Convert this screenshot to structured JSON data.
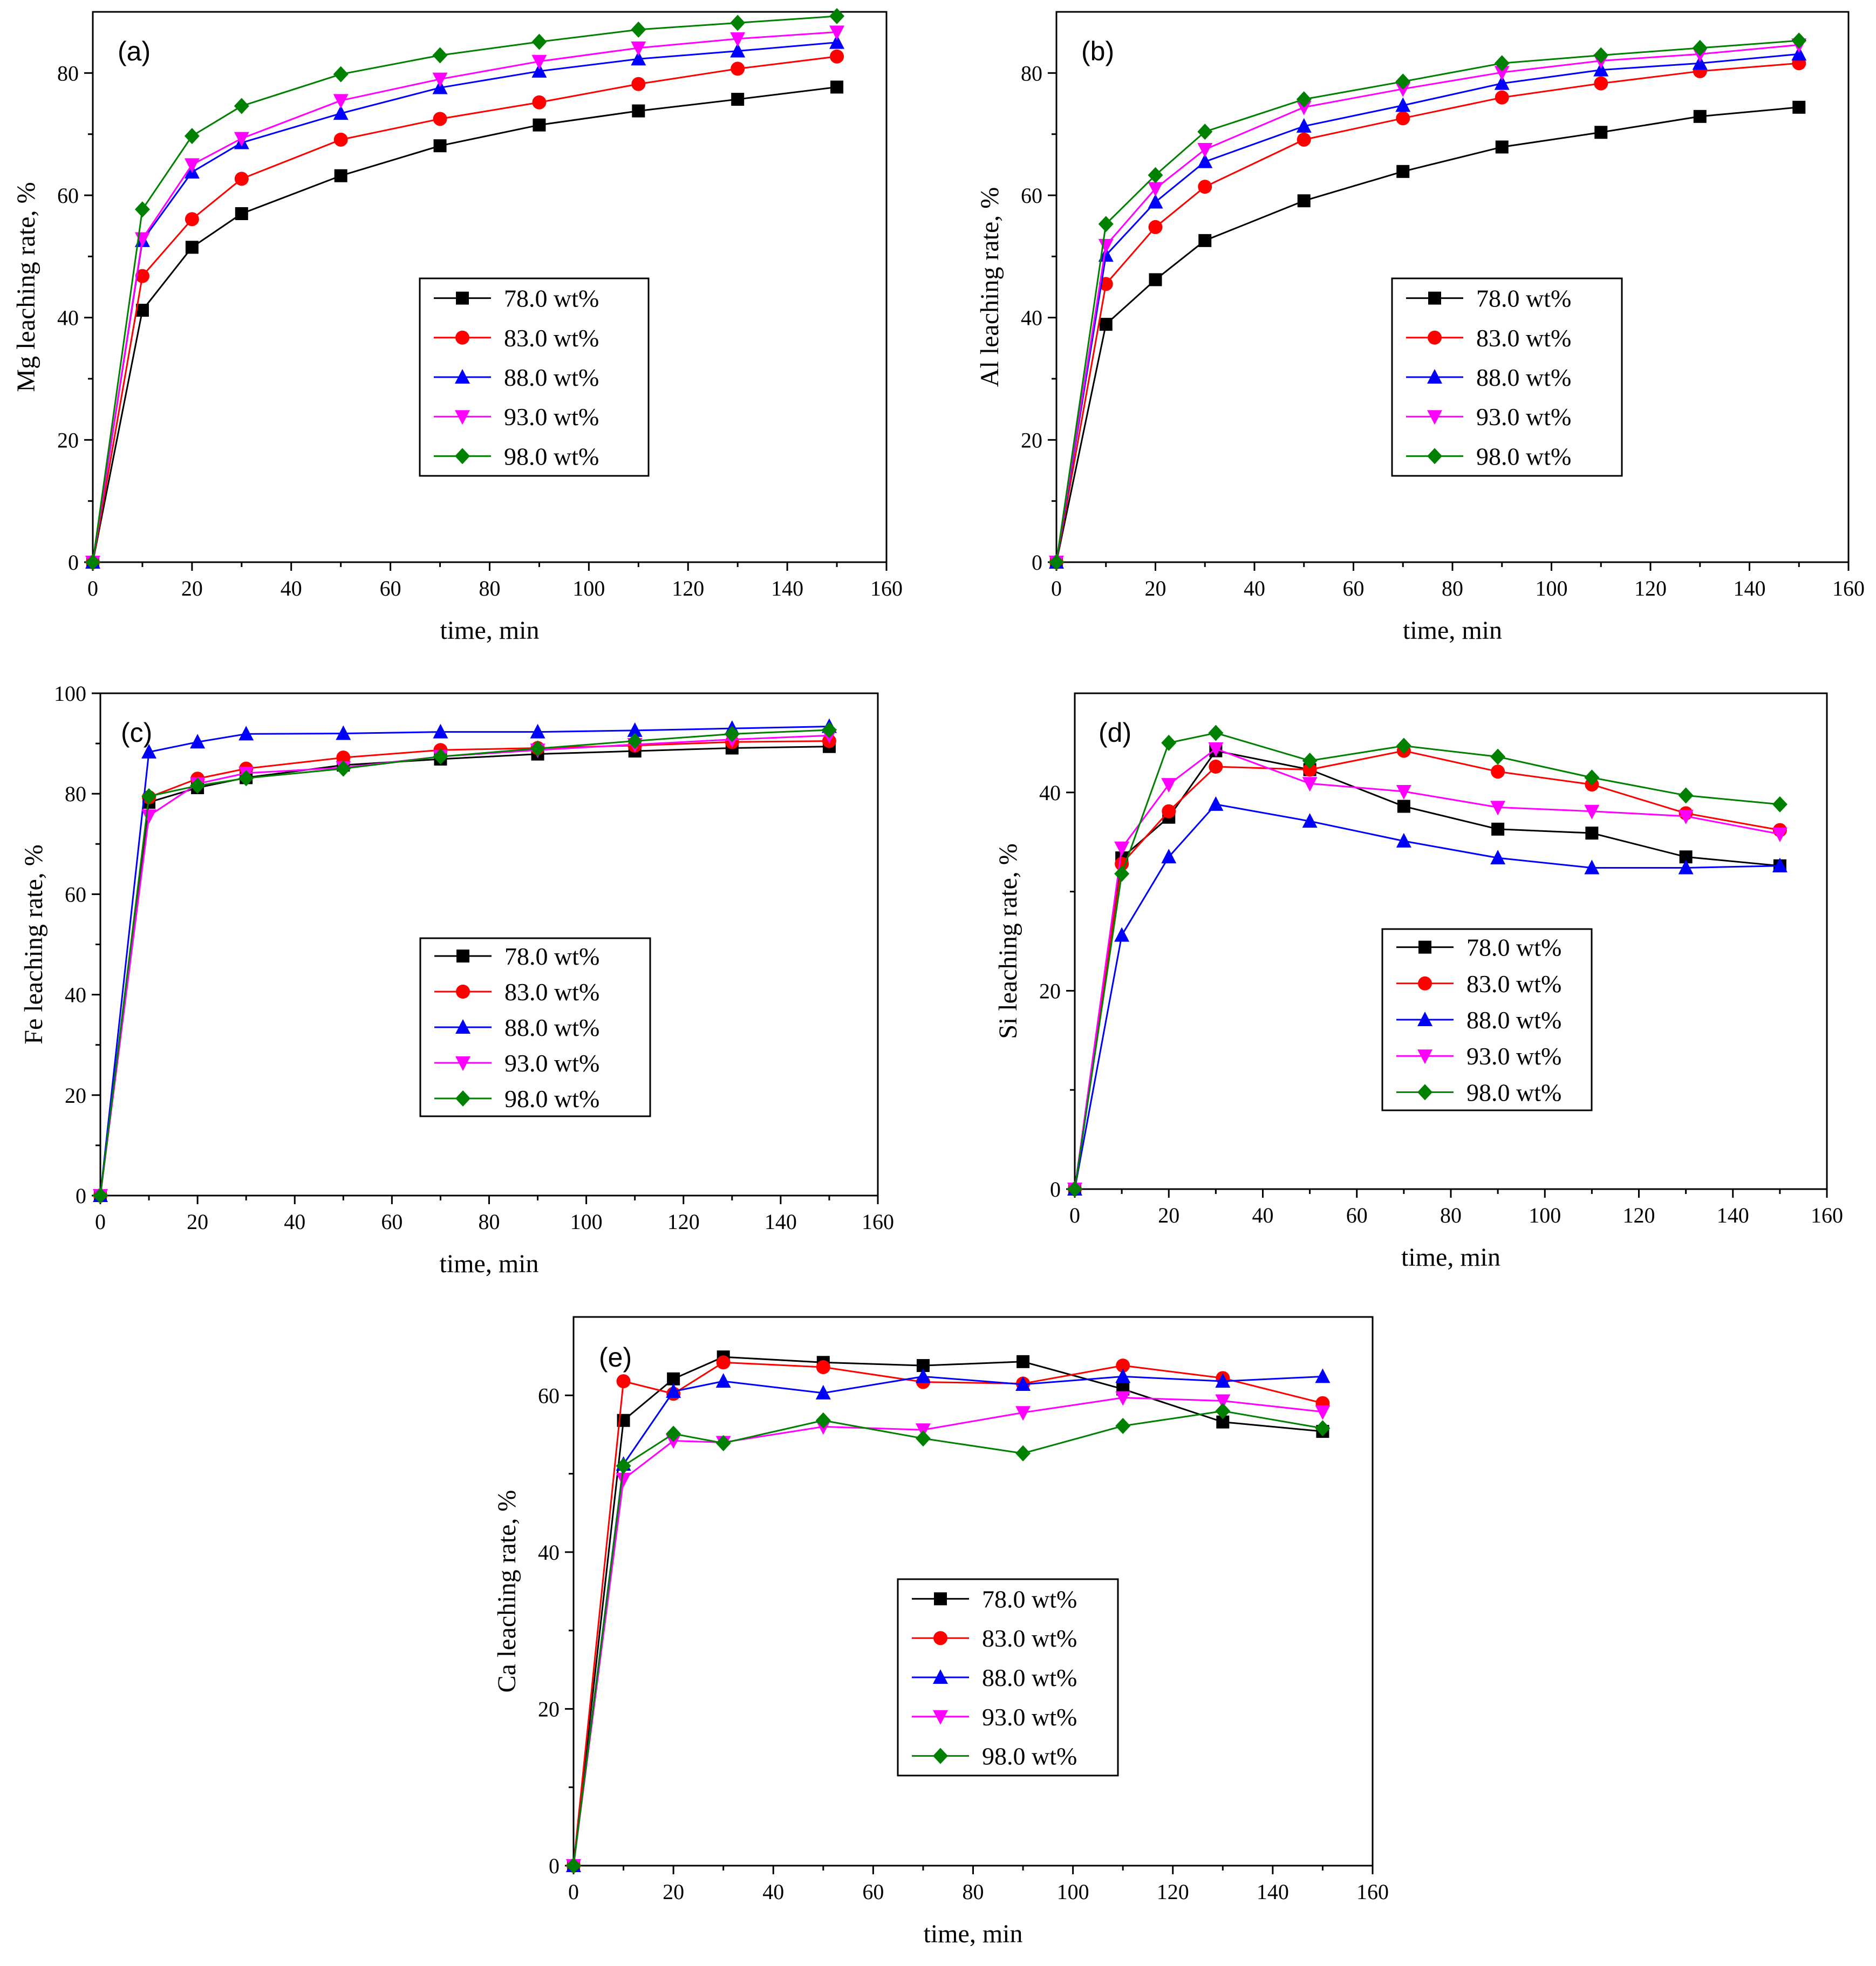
{
  "chart_data": [
    {
      "type": "line",
      "panel": "(a)",
      "xlabel": "time, min",
      "ylabel": "Mg leaching rate, %",
      "xlim": [
        0,
        160
      ],
      "ylim": [
        0,
        90
      ],
      "xticks": [
        0,
        20,
        40,
        60,
        80,
        100,
        120,
        140,
        160
      ],
      "yticks": [
        0,
        20,
        40,
        60,
        80
      ],
      "legend_position": "center-right",
      "x": [
        0,
        10,
        20,
        30,
        50,
        70,
        90,
        110,
        130,
        150
      ],
      "series": [
        {
          "name": "78.0 wt%",
          "color": "#000000",
          "marker": "square",
          "values": [
            0,
            41.2,
            51.5,
            57,
            63.2,
            68.1,
            71.5,
            73.8,
            75.7,
            77.7
          ]
        },
        {
          "name": "83.0 wt%",
          "color": "#ff0000",
          "marker": "circle",
          "values": [
            0,
            46.8,
            56.1,
            62.7,
            69.1,
            72.5,
            75.2,
            78.2,
            80.7,
            82.7
          ]
        },
        {
          "name": "88.0 wt%",
          "color": "#0000ff",
          "marker": "triangle-up",
          "values": [
            0,
            52.6,
            63.8,
            68.6,
            73.4,
            77.6,
            80.3,
            82.3,
            83.6,
            85
          ]
        },
        {
          "name": "93.0 wt%",
          "color": "#ff00ff",
          "marker": "triangle-down",
          "values": [
            0,
            52.9,
            65,
            69.3,
            75.5,
            79,
            81.9,
            84.1,
            85.6,
            86.7
          ]
        },
        {
          "name": "98.0 wt%",
          "color": "#008000",
          "marker": "diamond",
          "values": [
            0,
            57.7,
            69.7,
            74.6,
            79.8,
            82.9,
            85.1,
            87.1,
            88.2,
            89.3
          ]
        }
      ]
    },
    {
      "type": "line",
      "panel": "(b)",
      "xlabel": "time, min",
      "ylabel": "Al leaching rate, %",
      "xlim": [
        0,
        160
      ],
      "ylim": [
        0,
        90
      ],
      "xticks": [
        0,
        20,
        40,
        60,
        80,
        100,
        120,
        140,
        160
      ],
      "yticks": [
        0,
        20,
        40,
        60,
        80
      ],
      "legend_position": "center-right",
      "x": [
        0,
        10,
        20,
        30,
        50,
        70,
        90,
        110,
        130,
        150
      ],
      "series": [
        {
          "name": "78.0 wt%",
          "color": "#000000",
          "marker": "square",
          "values": [
            0,
            38.9,
            46.2,
            52.6,
            59.1,
            63.9,
            67.9,
            70.3,
            72.9,
            74.4
          ]
        },
        {
          "name": "83.0 wt%",
          "color": "#ff0000",
          "marker": "circle",
          "values": [
            0,
            45.5,
            54.8,
            61.4,
            69.1,
            72.6,
            76,
            78.3,
            80.3,
            81.6
          ]
        },
        {
          "name": "88.0 wt%",
          "color": "#0000ff",
          "marker": "triangle-up",
          "values": [
            0,
            50.2,
            58.9,
            65.5,
            71.3,
            74.7,
            78.3,
            80.5,
            81.6,
            83.1
          ]
        },
        {
          "name": "93.0 wt%",
          "color": "#ff00ff",
          "marker": "triangle-down",
          "values": [
            0,
            51.8,
            61.1,
            67.5,
            74.4,
            77.4,
            80.1,
            82,
            83.1,
            84.6
          ]
        },
        {
          "name": "98.0 wt%",
          "color": "#008000",
          "marker": "diamond",
          "values": [
            0,
            55.3,
            63.3,
            70.4,
            75.7,
            78.6,
            81.6,
            82.9,
            84.1,
            85.3
          ]
        }
      ]
    },
    {
      "type": "line",
      "panel": "(c)",
      "xlabel": "time, min",
      "ylabel": "Fe leaching rate, %",
      "xlim": [
        0,
        160
      ],
      "ylim": [
        0,
        100
      ],
      "xticks": [
        0,
        20,
        40,
        60,
        80,
        100,
        120,
        140,
        160
      ],
      "yticks": [
        0,
        20,
        40,
        60,
        80,
        100
      ],
      "legend_position": "center-right",
      "x": [
        0,
        10,
        20,
        30,
        50,
        70,
        90,
        110,
        130,
        150
      ],
      "series": [
        {
          "name": "78.0 wt%",
          "color": "#000000",
          "marker": "square",
          "values": [
            0,
            78.3,
            81.2,
            83.2,
            85.7,
            86.9,
            87.9,
            88.5,
            89.1,
            89.4
          ]
        },
        {
          "name": "83.0 wt%",
          "color": "#ff0000",
          "marker": "circle",
          "values": [
            0,
            79.3,
            83,
            85,
            87.2,
            88.7,
            89.1,
            89.6,
            90.3,
            90.5
          ]
        },
        {
          "name": "88.0 wt%",
          "color": "#0000ff",
          "marker": "triangle-up",
          "values": [
            0,
            88.3,
            90.3,
            91.9,
            92,
            92.3,
            92.3,
            92.6,
            93,
            93.4
          ]
        },
        {
          "name": "93.0 wt%",
          "color": "#ff00ff",
          "marker": "triangle-down",
          "values": [
            0,
            75.6,
            82,
            84.1,
            85.2,
            87.4,
            88.7,
            89.8,
            90.8,
            91.6
          ]
        },
        {
          "name": "98.0 wt%",
          "color": "#008000",
          "marker": "diamond",
          "values": [
            0,
            79.5,
            81.6,
            83.1,
            85,
            87.4,
            89,
            90.5,
            91.9,
            92.7
          ]
        }
      ]
    },
    {
      "type": "line",
      "panel": "(d)",
      "xlabel": "time, min",
      "ylabel": "Si leaching rate, %",
      "xlim": [
        0,
        160
      ],
      "ylim": [
        0,
        50
      ],
      "xticks": [
        0,
        20,
        40,
        60,
        80,
        100,
        120,
        140,
        160
      ],
      "yticks": [
        0,
        20,
        40
      ],
      "legend_position": "center-right",
      "x": [
        0,
        10,
        20,
        30,
        50,
        70,
        90,
        110,
        130,
        150
      ],
      "series": [
        {
          "name": "78.0 wt%",
          "color": "#000000",
          "marker": "square",
          "values": [
            0,
            33.4,
            37.5,
            44.2,
            42.3,
            38.6,
            36.3,
            35.9,
            33.5,
            32.6
          ]
        },
        {
          "name": "83.0 wt%",
          "color": "#ff0000",
          "marker": "circle",
          "values": [
            0,
            32.8,
            38.1,
            42.6,
            42.3,
            44.2,
            42.1,
            40.8,
            37.9,
            36.2
          ]
        },
        {
          "name": "88.0 wt%",
          "color": "#0000ff",
          "marker": "triangle-up",
          "values": [
            0,
            25.6,
            33.5,
            38.8,
            37.1,
            35.1,
            33.4,
            32.4,
            32.4,
            32.6
          ]
        },
        {
          "name": "93.0 wt%",
          "color": "#ff00ff",
          "marker": "triangle-down",
          "values": [
            0,
            34.4,
            40.8,
            44.4,
            40.9,
            40.1,
            38.5,
            38.1,
            37.6,
            35.8
          ]
        },
        {
          "name": "98.0 wt%",
          "color": "#008000",
          "marker": "diamond",
          "values": [
            0,
            31.8,
            45,
            46,
            43.2,
            44.7,
            43.6,
            41.5,
            39.7,
            38.8
          ]
        }
      ]
    },
    {
      "type": "line",
      "panel": "(e)",
      "xlabel": "time, min",
      "ylabel": "Ca leaching rate, %",
      "xlim": [
        0,
        160
      ],
      "ylim": [
        0,
        70
      ],
      "xticks": [
        0,
        20,
        40,
        60,
        80,
        100,
        120,
        140,
        160
      ],
      "yticks": [
        0,
        20,
        40,
        60
      ],
      "legend_position": "center-right",
      "x": [
        0,
        10,
        20,
        30,
        50,
        70,
        90,
        110,
        130,
        150
      ],
      "series": [
        {
          "name": "78.0 wt%",
          "color": "#000000",
          "marker": "square",
          "values": [
            0,
            56.8,
            62.1,
            64.9,
            64.2,
            63.8,
            64.3,
            60.8,
            56.6,
            55.4
          ]
        },
        {
          "name": "83.0 wt%",
          "color": "#ff0000",
          "marker": "circle",
          "values": [
            0,
            61.8,
            60.2,
            64.2,
            63.6,
            61.7,
            61.5,
            63.8,
            62.2,
            59
          ]
        },
        {
          "name": "88.0 wt%",
          "color": "#0000ff",
          "marker": "triangle-up",
          "values": [
            0,
            51.2,
            60.5,
            61.8,
            60.3,
            62.4,
            61.4,
            62.4,
            61.8,
            62.4
          ]
        },
        {
          "name": "93.0 wt%",
          "color": "#ff00ff",
          "marker": "triangle-down",
          "values": [
            0,
            49.3,
            54.2,
            54,
            56,
            55.6,
            57.8,
            59.7,
            59.3,
            57.9
          ]
        },
        {
          "name": "98.0 wt%",
          "color": "#008000",
          "marker": "diamond",
          "values": [
            0,
            51,
            55.1,
            53.9,
            56.8,
            54.5,
            52.6,
            56.1,
            58,
            55.8
          ]
        }
      ]
    }
  ]
}
